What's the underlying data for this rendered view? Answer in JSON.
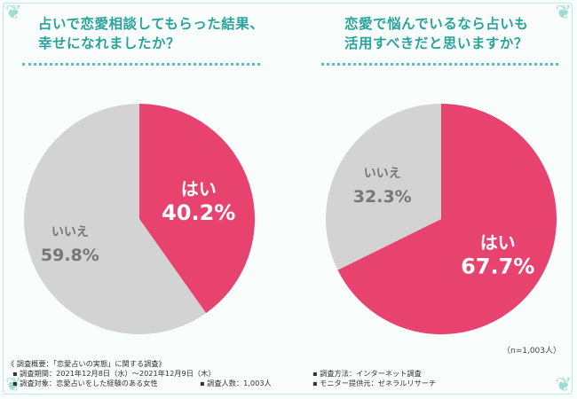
{
  "titles": {
    "left_line1": "占いで恋愛相談してもらった結果、",
    "left_line2": "幸せになれましたか？",
    "right_line1": "恋愛で悩んでいるなら占いも",
    "right_line2": "活用すべきだと思いますか？"
  },
  "colors": {
    "yes": "#e8426f",
    "no": "#d3d3d3",
    "accent": "#2aa39a"
  },
  "chart_data": [
    {
      "type": "pie",
      "title": "占いで恋愛相談してもらった結果、幸せになれましたか？",
      "slices": [
        {
          "label": "はい",
          "value": 40.2,
          "display": "40.2%"
        },
        {
          "label": "いいえ",
          "value": 59.8,
          "display": "59.8%"
        }
      ]
    },
    {
      "type": "pie",
      "title": "恋愛で悩んでいるなら占いも活用すべきだと思いますか？",
      "slices": [
        {
          "label": "はい",
          "value": 67.7,
          "display": "67.7%"
        },
        {
          "label": "いいえ",
          "value": 32.3,
          "display": "32.3%"
        }
      ]
    }
  ],
  "sample_note": "（n=1,003人）",
  "footer": {
    "overview": "《 調査概要：「恋愛占いの実態」に関する調査》",
    "period": "▪ 調査期間：2021年12月8日（水）〜2021年12月9日（木）",
    "target": "▪ 調査対象：恋愛占いをした経験のある女性",
    "count": "▪ 調査人数：1,003人",
    "method": "▪ 調査方法：インターネット調査",
    "provider": "▪ モニター提供元：ゼネラルリサーチ"
  }
}
